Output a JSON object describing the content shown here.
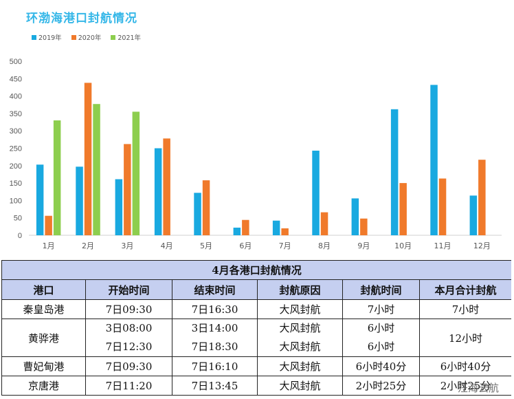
{
  "chart_data": {
    "type": "bar",
    "title": "环渤海港口封航情况",
    "categories": [
      "1月",
      "2月",
      "3月",
      "4月",
      "5月",
      "6月",
      "7月",
      "8月",
      "9月",
      "10月",
      "11月",
      "12月"
    ],
    "series": [
      {
        "name": "2019年",
        "color": "#19a9e0",
        "values": [
          203,
          197,
          161,
          250,
          122,
          22,
          42,
          243,
          106,
          362,
          432,
          114
        ]
      },
      {
        "name": "2020年",
        "color": "#f07a2b",
        "values": [
          56,
          438,
          262,
          278,
          158,
          44,
          20,
          66,
          48,
          150,
          163,
          217
        ]
      },
      {
        "name": "2021年",
        "color": "#8dce4e",
        "values": [
          330,
          377,
          355,
          null,
          null,
          null,
          null,
          null,
          null,
          null,
          null,
          null
        ]
      }
    ],
    "y_ticks": [
      "500",
      "450",
      "400",
      "350",
      "300",
      "250",
      "200",
      "150",
      "100",
      "50",
      "0"
    ],
    "ylim": [
      0,
      500
    ],
    "legend_position": "top-left",
    "grid": false
  },
  "table": {
    "title": "4月各港口封航情况",
    "headers": [
      "港口",
      "开始时间",
      "结束时间",
      "封航原因",
      "封航时间",
      "本月合计封航"
    ],
    "rows": [
      {
        "port": "秦皇岛港",
        "entries": [
          {
            "start": "7日09:30",
            "end": "7日16:30",
            "reason": "大风封航",
            "duration": "7小时"
          }
        ],
        "total": "7小时"
      },
      {
        "port": "黄骅港",
        "entries": [
          {
            "start": "3日08:00",
            "end": "3日14:00",
            "reason": "大风封航",
            "duration": "6小时"
          },
          {
            "start": "7日12:30",
            "end": "7日18:30",
            "reason": "大风封航",
            "duration": "6小时"
          }
        ],
        "total": "12小时"
      },
      {
        "port": "曹妃甸港",
        "entries": [
          {
            "start": "7日09:30",
            "end": "7日16:10",
            "reason": "大风封航",
            "duration": "6小时40分"
          }
        ],
        "total": "6小时40分"
      },
      {
        "port": "京唐港",
        "entries": [
          {
            "start": "7日11:20",
            "end": "7日13:45",
            "reason": "大风封航",
            "duration": "2小时25分"
          }
        ],
        "total": "2小时25分"
      }
    ]
  },
  "watermark": "汪海云航"
}
